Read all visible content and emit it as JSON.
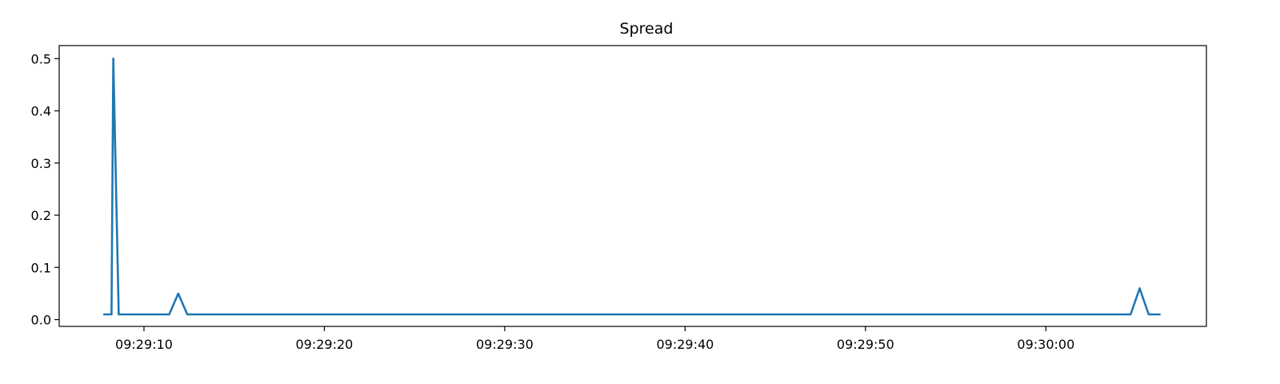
{
  "chart_data": {
    "type": "line",
    "title": "Spread",
    "xlabel": "",
    "ylabel": "",
    "x_axis_type": "time",
    "x": [
      "09:29:07.8",
      "09:29:08.2",
      "09:29:08.3",
      "09:29:08.6",
      "09:29:11.4",
      "09:29:11.9",
      "09:29:12.4",
      "09:30:04.7",
      "09:30:05.2",
      "09:30:05.7",
      "09:30:06.3"
    ],
    "series": [
      {
        "values": [
          0.01,
          0.01,
          0.5,
          0.01,
          0.01,
          0.05,
          0.01,
          0.01,
          0.06,
          0.01,
          0.01
        ],
        "color": "#1f77b4"
      }
    ],
    "xlim": [
      "09:29:05.3",
      "09:30:08.9"
    ],
    "ylim": [
      -0.013,
      0.525
    ],
    "x_ticks": [
      "09:29:10",
      "09:29:20",
      "09:29:30",
      "09:29:40",
      "09:29:50",
      "09:30:00"
    ],
    "y_ticks": [
      0.0,
      0.1,
      0.2,
      0.3,
      0.4,
      0.5
    ],
    "y_tick_labels": [
      "0.0",
      "0.1",
      "0.2",
      "0.3",
      "0.4",
      "0.5"
    ],
    "grid": false,
    "legend": "none"
  }
}
